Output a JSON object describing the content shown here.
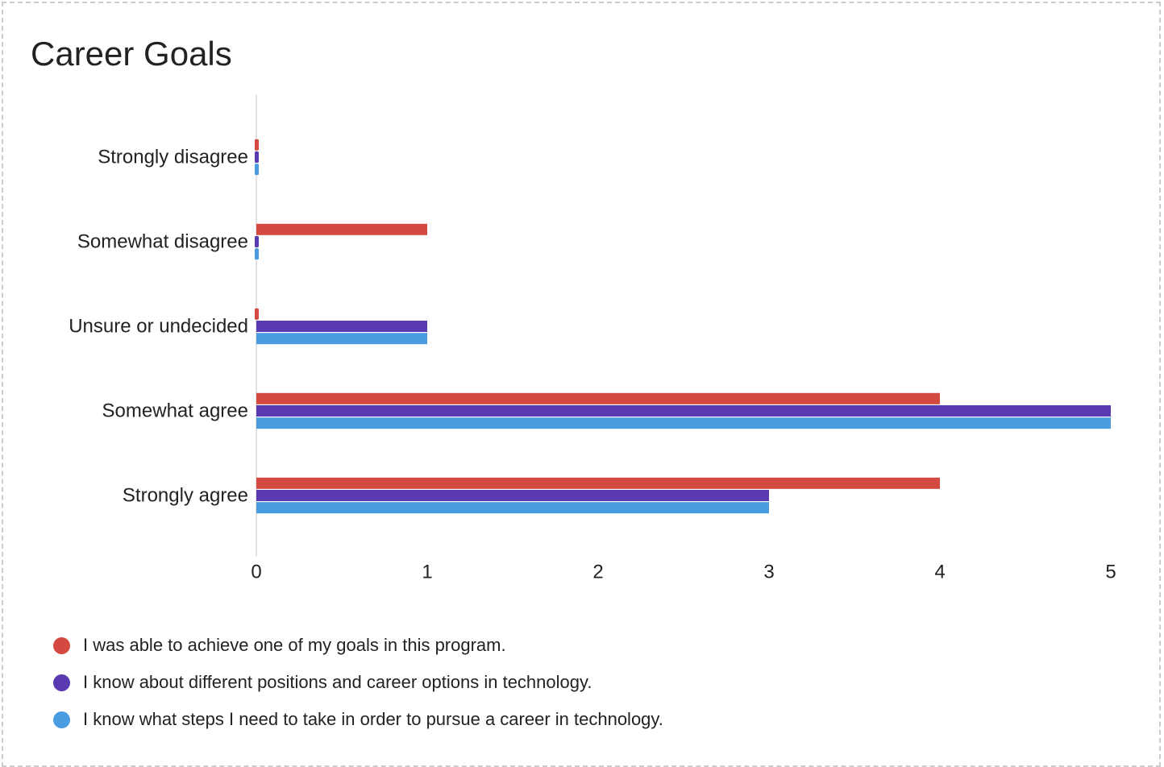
{
  "chart_data": {
    "type": "bar",
    "orientation": "horizontal",
    "title": "Career Goals",
    "categories": [
      "Strongly disagree",
      "Somewhat disagree",
      "Unsure or undecided",
      "Somewhat agree",
      "Strongly agree"
    ],
    "series": [
      {
        "name": "I was able to achieve one of my goals in this program.",
        "color": "#d44a40",
        "values": [
          0,
          1,
          0,
          4,
          4
        ]
      },
      {
        "name": "I know about different positions and career options in technology.",
        "color": "#5a3ab2",
        "values": [
          0,
          0,
          1,
          5,
          3
        ]
      },
      {
        "name": "I know what steps I need to take in order to pursue a career in technology.",
        "color": "#4a9ce0",
        "values": [
          0,
          0,
          1,
          5,
          3
        ]
      }
    ],
    "xlim": [
      0,
      5
    ],
    "xticks": [
      "0",
      "1",
      "2",
      "3",
      "4",
      "5"
    ],
    "xlabel": "",
    "ylabel": "",
    "grid": false,
    "legend_position": "bottom"
  }
}
